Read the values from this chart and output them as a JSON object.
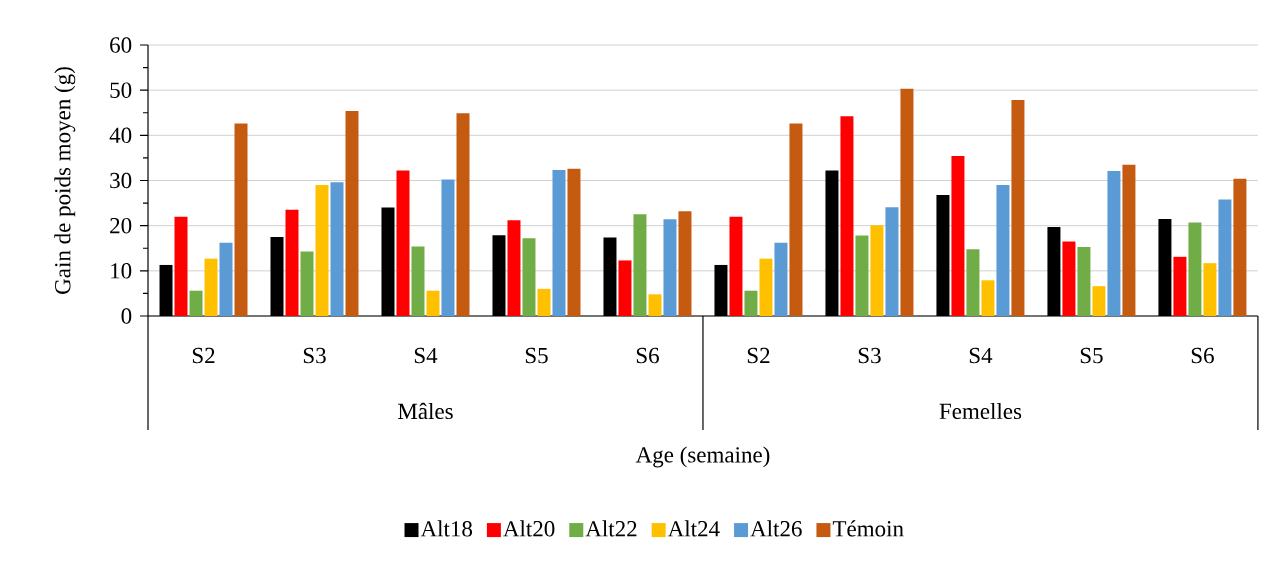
{
  "chart_data": {
    "type": "bar",
    "xlabel": "Age (semaine)",
    "ylabel": "Gain de poids moyen (g)",
    "categories": [
      "S2",
      "S3",
      "S4",
      "S5",
      "S6",
      "S2",
      "S3",
      "S4",
      "S5",
      "S6"
    ],
    "annotations": [
      "Mâles",
      "Femelles"
    ],
    "series": [
      {
        "name": "Alt18",
        "color": "#000000",
        "values": [
          11.3,
          17.5,
          24,
          17.9,
          17.4,
          11.3,
          32.2,
          26.8,
          19.7,
          21.5
        ]
      },
      {
        "name": "Alt20",
        "color": "#ff0000",
        "values": [
          22,
          23.5,
          32.2,
          21.2,
          12.3,
          22,
          44.2,
          35.4,
          16.5,
          13.1
        ]
      },
      {
        "name": "Alt22",
        "color": "#70ad47",
        "values": [
          5.6,
          14.3,
          15.4,
          17.2,
          22.5,
          5.6,
          17.8,
          14.8,
          15.3,
          20.7
        ]
      },
      {
        "name": "Alt24",
        "color": "#ffc000",
        "values": [
          12.7,
          29,
          5.6,
          6,
          4.8,
          12.7,
          20.1,
          7.9,
          6.6,
          11.7
        ]
      },
      {
        "name": "Alt26",
        "color": "#5b9bd5",
        "values": [
          16.2,
          29.6,
          30.2,
          32.3,
          21.4,
          16.2,
          24.1,
          29,
          32.1,
          25.8
        ]
      },
      {
        "name": "Témoin",
        "color": "#c55a11",
        "values": [
          42.6,
          45.4,
          44.9,
          32.6,
          23.2,
          42.6,
          50.3,
          47.8,
          33.5,
          30.4
        ]
      }
    ],
    "ylim": [
      0,
      60
    ],
    "yticks": [
      0,
      10,
      20,
      30,
      40,
      50,
      60
    ],
    "grid": "y",
    "legend": "bottom"
  }
}
